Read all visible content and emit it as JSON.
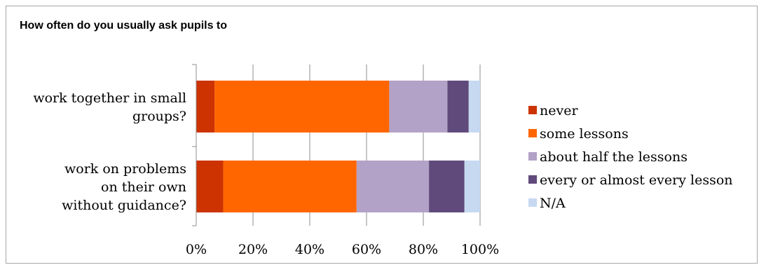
{
  "chart_data": {
    "type": "bar",
    "orientation": "horizontal",
    "stacked": "percent",
    "title": "How often do you usually ask pupils to",
    "categories": [
      "work together in small groups?",
      "work on problems on their own without guidance?"
    ],
    "category_lines": [
      [
        "work together in small",
        "groups?"
      ],
      [
        "work on problems",
        "on their own",
        "without guidance?"
      ]
    ],
    "series": [
      {
        "name": "never",
        "color": "#cc3300",
        "values": [
          6.5,
          9.5
        ]
      },
      {
        "name": "some lessons",
        "color": "#ff6600",
        "values": [
          61.5,
          47.0
        ]
      },
      {
        "name": "about half the lessons",
        "color": "#b3a2c7",
        "values": [
          20.5,
          25.5
        ]
      },
      {
        "name": "every or almost every lesson",
        "color": "#604a7b",
        "values": [
          7.5,
          12.5
        ]
      },
      {
        "name": "N/A",
        "color": "#c6d9f1",
        "values": [
          4.0,
          5.5
        ]
      }
    ],
    "xlim": [
      0,
      100
    ],
    "xticks": [
      0,
      20,
      40,
      60,
      80,
      100
    ],
    "xtick_labels": [
      "0%",
      "20%",
      "40%",
      "60%",
      "80%",
      "100%"
    ],
    "grid": "vertical",
    "legend": "right",
    "xlabel": "",
    "ylabel": ""
  }
}
